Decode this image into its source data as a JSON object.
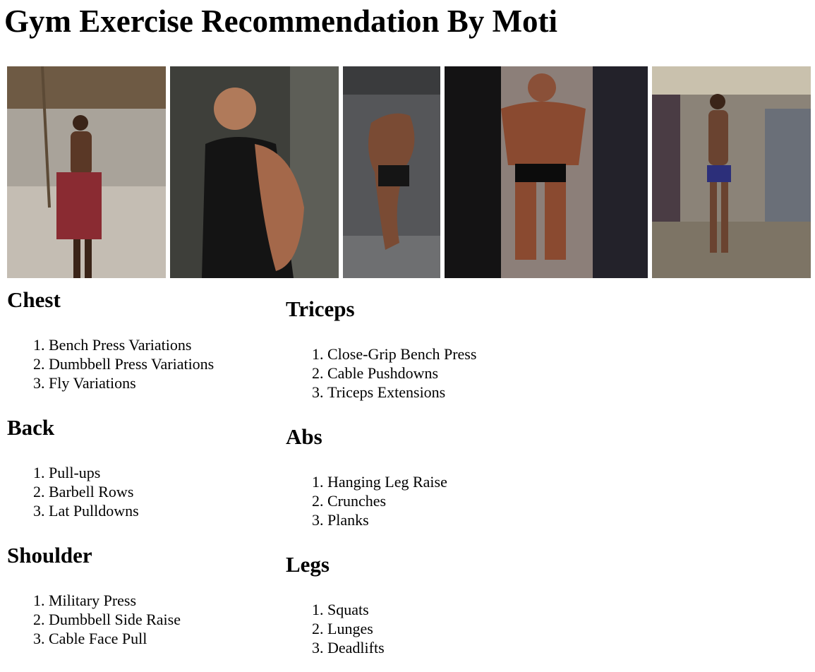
{
  "page": {
    "title": "Gym Exercise Recommendation By Moti"
  },
  "gallery": [
    {
      "name": "gym-photo-1"
    },
    {
      "name": "gym-photo-2"
    },
    {
      "name": "gym-photo-3"
    },
    {
      "name": "gym-photo-4"
    },
    {
      "name": "gym-photo-5"
    }
  ],
  "sections": {
    "chest": {
      "heading": "Chest",
      "items": [
        "Bench Press Variations",
        "Dumbbell Press Variations",
        "Fly Variations"
      ]
    },
    "back": {
      "heading": "Back",
      "items": [
        "Pull-ups",
        "Barbell Rows",
        "Lat Pulldowns"
      ]
    },
    "shoulder": {
      "heading": "Shoulder",
      "items": [
        "Military Press",
        "Dumbbell Side Raise",
        "Cable Face Pull"
      ]
    },
    "triceps": {
      "heading": "Triceps",
      "items": [
        "Close-Grip Bench Press",
        "Cable Pushdowns",
        "Triceps Extensions"
      ]
    },
    "abs": {
      "heading": "Abs",
      "items": [
        "Hanging Leg Raise",
        "Crunches",
        "Planks"
      ]
    },
    "legs": {
      "heading": "Legs",
      "items": [
        "Squats",
        "Lunges",
        "Deadlifts"
      ]
    }
  }
}
